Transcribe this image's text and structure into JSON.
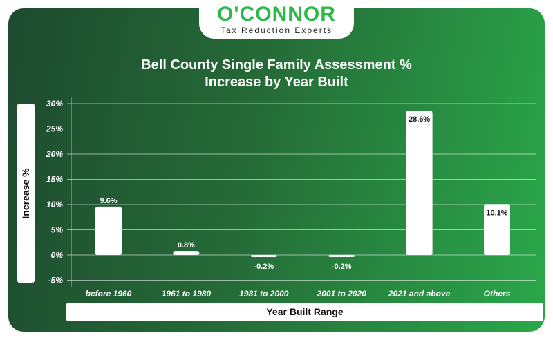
{
  "logo": {
    "brand": "O'CONNOR",
    "tagline": "Tax Reduction Experts"
  },
  "chart_data": {
    "type": "bar",
    "title": "Bell County Single Family Assessment % Increase by Year Built",
    "title_lines": [
      "Bell County Single Family Assessment %",
      "Increase by Year Built"
    ],
    "xlabel": "Year Built Range",
    "ylabel": "Increase %",
    "categories": [
      "before 1960",
      "1961 to 1980",
      "1981 to 2000",
      "2001 to 2020",
      "2021 and above",
      "Others"
    ],
    "values": [
      9.6,
      0.8,
      -0.2,
      -0.2,
      28.6,
      10.1
    ],
    "data_labels": [
      "9.6%",
      "0.8%",
      "-0.2%",
      "-0.2%",
      "28.6%",
      "10.1%"
    ],
    "ylim": [
      -5,
      30
    ],
    "yticks": [
      30,
      25,
      20,
      15,
      10,
      5,
      0,
      -5
    ],
    "ytick_labels": [
      "30%",
      "25%",
      "20%",
      "15%",
      "10%",
      "5%",
      "0%",
      "-5%"
    ],
    "grid": true,
    "bar_color": "#ffffff"
  }
}
